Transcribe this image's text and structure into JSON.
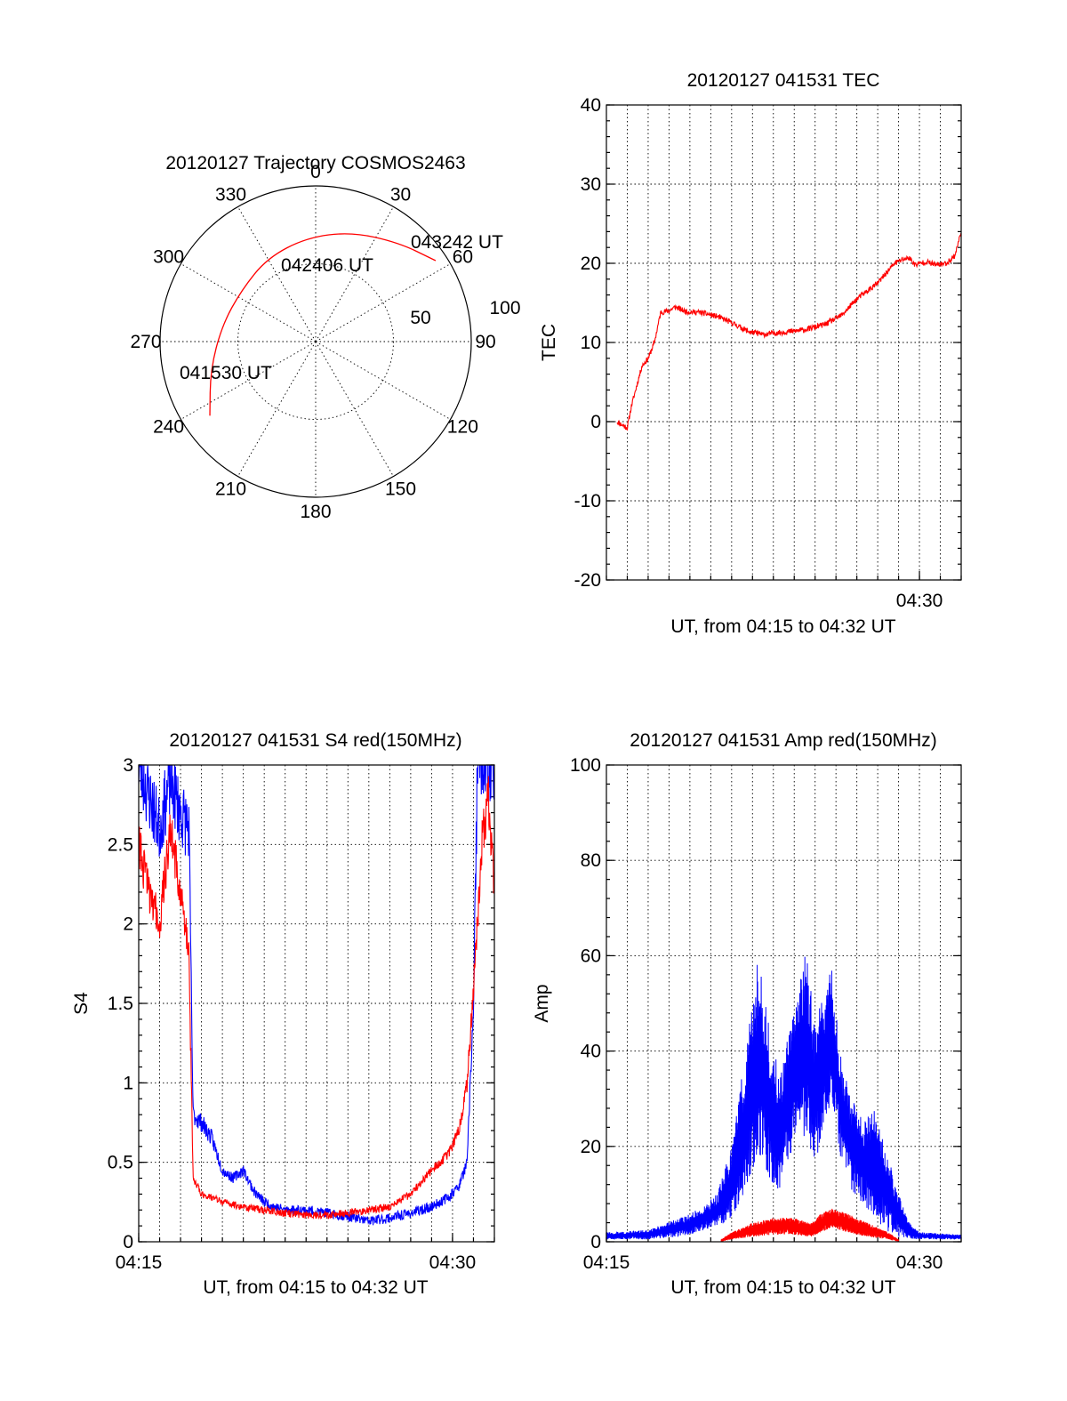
{
  "chart_data": [
    {
      "type": "polar",
      "title": "20120127 Trajectory COSMOS2463",
      "azimuth_labels": [
        "0",
        "30",
        "60",
        "90",
        "120",
        "150",
        "180",
        "210",
        "240",
        "270",
        "300",
        "330"
      ],
      "ring_labels": [
        "50",
        "100"
      ],
      "trajectory": {
        "color": "#ff0000",
        "points": [
          {
            "az": 235,
            "r": 83
          },
          {
            "az": 255,
            "r": 70
          },
          {
            "az": 280,
            "r": 61
          },
          {
            "az": 305,
            "r": 58
          },
          {
            "az": 330,
            "r": 62
          },
          {
            "az": 355,
            "r": 67
          },
          {
            "az": 18,
            "r": 74
          },
          {
            "az": 40,
            "r": 83
          },
          {
            "az": 56,
            "r": 93
          }
        ]
      },
      "annotations": [
        {
          "text": "043242 UT",
          "az": 58,
          "r": 98
        },
        {
          "text": "042406 UT",
          "az": 15,
          "r": 55
        },
        {
          "text": "041530 UT",
          "az": 245,
          "r": 88
        }
      ]
    },
    {
      "type": "line",
      "title": "20120127 041531 TEC",
      "xlabel": "UT, from 04:15 to 04:32 UT",
      "ylabel": "TEC",
      "xlim": [
        15.0,
        32.0
      ],
      "ylim": [
        -20,
        40
      ],
      "yticks": [
        -20,
        -10,
        0,
        10,
        20,
        30,
        40
      ],
      "xtick_labels": [
        {
          "x": 30.0,
          "label": "04:30"
        }
      ],
      "series": [
        {
          "color": "#ff0000",
          "noise": 0.35,
          "points": [
            [
              15.5,
              0
            ],
            [
              15.8,
              -0.5
            ],
            [
              16.0,
              -0.8
            ],
            [
              16.2,
              2
            ],
            [
              16.5,
              5
            ],
            [
              16.7,
              7
            ],
            [
              17.0,
              8
            ],
            [
              17.3,
              10
            ],
            [
              17.6,
              13.8
            ],
            [
              18.0,
              14
            ],
            [
              18.3,
              14.5
            ],
            [
              18.8,
              13.9
            ],
            [
              19.5,
              13.8
            ],
            [
              20.3,
              13.3
            ],
            [
              21.0,
              12.5
            ],
            [
              21.8,
              11.4
            ],
            [
              22.5,
              11.0
            ],
            [
              23.5,
              11.3
            ],
            [
              24.5,
              11.6
            ],
            [
              25.5,
              12.3
            ],
            [
              26.3,
              13.5
            ],
            [
              27.0,
              15.5
            ],
            [
              28.0,
              17.5
            ],
            [
              28.8,
              20
            ],
            [
              29.2,
              20.5
            ],
            [
              29.5,
              20.7
            ],
            [
              29.8,
              19.8
            ],
            [
              30.3,
              20.2
            ],
            [
              30.8,
              19.8
            ],
            [
              31.3,
              20.0
            ],
            [
              31.7,
              21
            ],
            [
              32.0,
              24
            ]
          ]
        }
      ]
    },
    {
      "type": "line",
      "title": "20120127 041531 S4 red(150MHz)",
      "xlabel": "UT, from 04:15 to 04:32 UT",
      "ylabel": "S4",
      "xlim": [
        15.0,
        32.0
      ],
      "ylim": [
        0,
        3
      ],
      "yticks": [
        0,
        0.5,
        1,
        1.5,
        2,
        2.5,
        3
      ],
      "xtick_labels": [
        {
          "x": 15.0,
          "label": "04:15"
        },
        {
          "x": 30.0,
          "label": "04:30"
        }
      ],
      "series": [
        {
          "color": "#0000ff",
          "noise": 0.08,
          "points": [
            [
              15.0,
              3
            ],
            [
              15.5,
              2.8
            ],
            [
              16.0,
              2.6
            ],
            [
              16.5,
              2.9
            ],
            [
              17.0,
              2.7
            ],
            [
              17.4,
              2.6
            ],
            [
              17.6,
              0.8
            ],
            [
              18.0,
              0.75
            ],
            [
              18.5,
              0.65
            ],
            [
              19.0,
              0.45
            ],
            [
              19.5,
              0.4
            ],
            [
              20.0,
              0.45
            ],
            [
              20.5,
              0.32
            ],
            [
              21.0,
              0.25
            ],
            [
              21.5,
              0.22
            ],
            [
              22.0,
              0.2
            ],
            [
              23.0,
              0.2
            ],
            [
              24.0,
              0.18
            ],
            [
              25.0,
              0.16
            ],
            [
              26.0,
              0.13
            ],
            [
              27.0,
              0.15
            ],
            [
              28.0,
              0.18
            ],
            [
              29.0,
              0.22
            ],
            [
              29.8,
              0.28
            ],
            [
              30.3,
              0.35
            ],
            [
              30.7,
              0.5
            ],
            [
              31.0,
              1.5
            ],
            [
              31.2,
              3
            ],
            [
              32.0,
              3
            ]
          ]
        },
        {
          "color": "#ff0000",
          "noise": 0.06,
          "points": [
            [
              15.0,
              2.5
            ],
            [
              15.5,
              2.2
            ],
            [
              16.0,
              2.0
            ],
            [
              16.5,
              2.6
            ],
            [
              17.0,
              2.2
            ],
            [
              17.4,
              1.8
            ],
            [
              17.6,
              0.4
            ],
            [
              18.0,
              0.3
            ],
            [
              18.5,
              0.28
            ],
            [
              19.0,
              0.25
            ],
            [
              20.0,
              0.22
            ],
            [
              21.0,
              0.2
            ],
            [
              22.0,
              0.18
            ],
            [
              23.0,
              0.17
            ],
            [
              24.0,
              0.17
            ],
            [
              25.0,
              0.18
            ],
            [
              26.0,
              0.2
            ],
            [
              27.0,
              0.22
            ],
            [
              28.0,
              0.3
            ],
            [
              29.0,
              0.45
            ],
            [
              29.8,
              0.55
            ],
            [
              30.3,
              0.7
            ],
            [
              30.7,
              1.0
            ],
            [
              31.0,
              1.6
            ],
            [
              31.4,
              2.5
            ],
            [
              31.7,
              2.8
            ],
            [
              32.0,
              2.2
            ]
          ]
        }
      ]
    },
    {
      "type": "line",
      "title": "20120127 041531 Amp red(150MHz)",
      "xlabel": "UT, from 04:15 to 04:32 UT",
      "ylabel": "Amp",
      "xlim": [
        15.0,
        32.0
      ],
      "ylim": [
        0,
        100
      ],
      "yticks": [
        0,
        20,
        40,
        60,
        80,
        100
      ],
      "xtick_labels": [
        {
          "x": 15.0,
          "label": "04:15"
        },
        {
          "x": 30.0,
          "label": "04:30"
        }
      ],
      "series": [
        {
          "color": "#0000ff",
          "noise": 0.0,
          "envelope": [
            [
              15.0,
              0.5,
              2
            ],
            [
              17.0,
              0.5,
              2.5
            ],
            [
              18.5,
              1,
              5
            ],
            [
              19.5,
              2,
              7
            ],
            [
              20.3,
              3,
              10
            ],
            [
              21.0,
              5,
              20
            ],
            [
              21.6,
              10,
              38
            ],
            [
              22.0,
              15,
              50
            ],
            [
              22.3,
              18,
              62
            ],
            [
              22.8,
              12,
              45
            ],
            [
              23.3,
              10,
              35
            ],
            [
              23.8,
              18,
              45
            ],
            [
              24.3,
              25,
              55
            ],
            [
              24.6,
              20,
              62
            ],
            [
              25.0,
              15,
              45
            ],
            [
              25.5,
              25,
              55
            ],
            [
              25.8,
              30,
              58
            ],
            [
              26.2,
              18,
              40
            ],
            [
              26.8,
              10,
              30
            ],
            [
              27.3,
              8,
              25
            ],
            [
              27.8,
              5,
              28
            ],
            [
              28.5,
              2,
              18
            ],
            [
              29.0,
              1,
              10
            ],
            [
              29.5,
              0.5,
              4
            ],
            [
              30.0,
              0.5,
              2
            ],
            [
              32.0,
              0.5,
              1.5
            ]
          ]
        },
        {
          "color": "#ff0000",
          "noise": 0.0,
          "envelope": [
            [
              20.5,
              0,
              0.5
            ],
            [
              21.0,
              0.5,
              2
            ],
            [
              22.0,
              1,
              4
            ],
            [
              23.0,
              1.5,
              5
            ],
            [
              24.0,
              1.5,
              5
            ],
            [
              24.8,
              1,
              4
            ],
            [
              25.3,
              2,
              6
            ],
            [
              25.8,
              3,
              7
            ],
            [
              26.5,
              2,
              6
            ],
            [
              27.5,
              1,
              4
            ],
            [
              28.5,
              0.5,
              2
            ],
            [
              29.0,
              0,
              0.5
            ]
          ]
        }
      ]
    }
  ]
}
